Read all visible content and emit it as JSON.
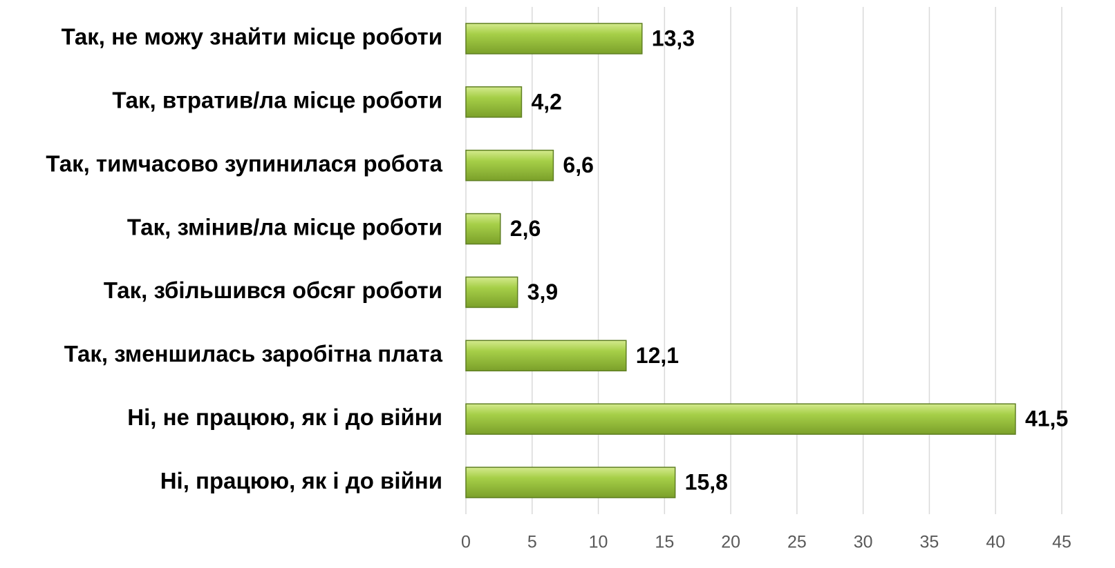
{
  "chart_data": {
    "type": "bar",
    "orientation": "horizontal",
    "categories": [
      "Так, не можу знайти місце роботи",
      "Так, втратив/ла місце роботи",
      "Так, тимчасово зупинилася робота",
      "Так, змінив/ла місце роботи",
      "Так, збільшився обсяг роботи",
      "Так, зменшилась заробітна плата",
      "Ні, не працюю, як і до війни",
      "Ні, працюю, як і до війни"
    ],
    "values": [
      13.3,
      4.2,
      6.6,
      2.6,
      3.9,
      12.1,
      41.5,
      15.8
    ],
    "value_labels": [
      "13,3",
      "4,2",
      "6,6",
      "2,6",
      "3,9",
      "12,1",
      "41,5",
      "15,8"
    ],
    "color": "#9bc43a",
    "xlim": [
      0,
      45
    ],
    "xticks": [
      0,
      5,
      10,
      15,
      20,
      25,
      30,
      35,
      40,
      45
    ],
    "grid": true
  }
}
